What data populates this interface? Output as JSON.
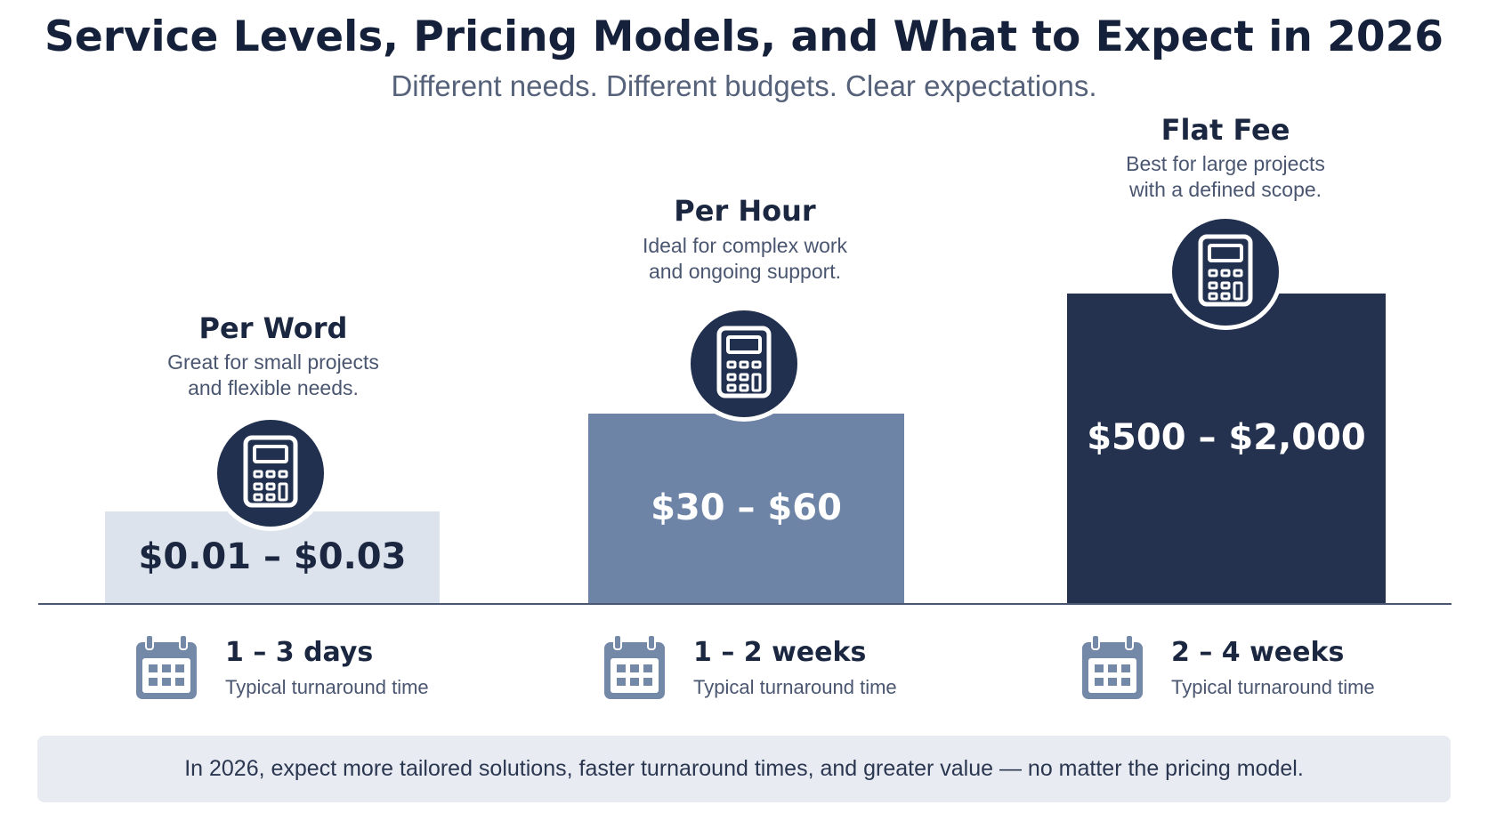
{
  "header": {
    "title": "Service Levels, Pricing Models, and What to Expect in 2026",
    "subtitle": "Different needs. Different budgets. Clear expectations."
  },
  "tiers": [
    {
      "name": "Per Word",
      "description_line1": "Great for small projects",
      "description_line2": "and flexible needs.",
      "price": "$0.01 – $0.03",
      "bar_color": "#dde3ec",
      "price_color": "#1b2740",
      "icon": "calculator-icon",
      "turnaround_value": "1 – 3 days",
      "turnaround_label": "Typical turnaround time",
      "turnaround_icon": "calendar-icon"
    },
    {
      "name": "Per Hour",
      "description_line1": "Ideal for complex work",
      "description_line2": "and ongoing support.",
      "price": "$30 – $60",
      "bar_color": "#6d84a6",
      "price_color": "#ffffff",
      "icon": "calculator-icon",
      "turnaround_value": "1 – 2 weeks",
      "turnaround_label": "Typical turnaround time",
      "turnaround_icon": "calendar-icon"
    },
    {
      "name": "Flat Fee",
      "description_line1": "Best for large projects",
      "description_line2": "with a defined scope.",
      "price": "$500 – $2,000",
      "bar_color": "#24324f",
      "price_color": "#ffffff",
      "icon": "calculator-icon",
      "turnaround_value": "2 – 4 weeks",
      "turnaround_label": "Typical turnaround time",
      "turnaround_icon": "calendar-icon"
    }
  ],
  "footer": {
    "text": "In 2026, expect more tailored solutions, faster turnaround times, and greater value — no matter the pricing model."
  },
  "colors": {
    "title": "#15203a",
    "badge": "#22304f",
    "calendar": "#7489a8",
    "footer_bg": "#e8ecf2"
  }
}
